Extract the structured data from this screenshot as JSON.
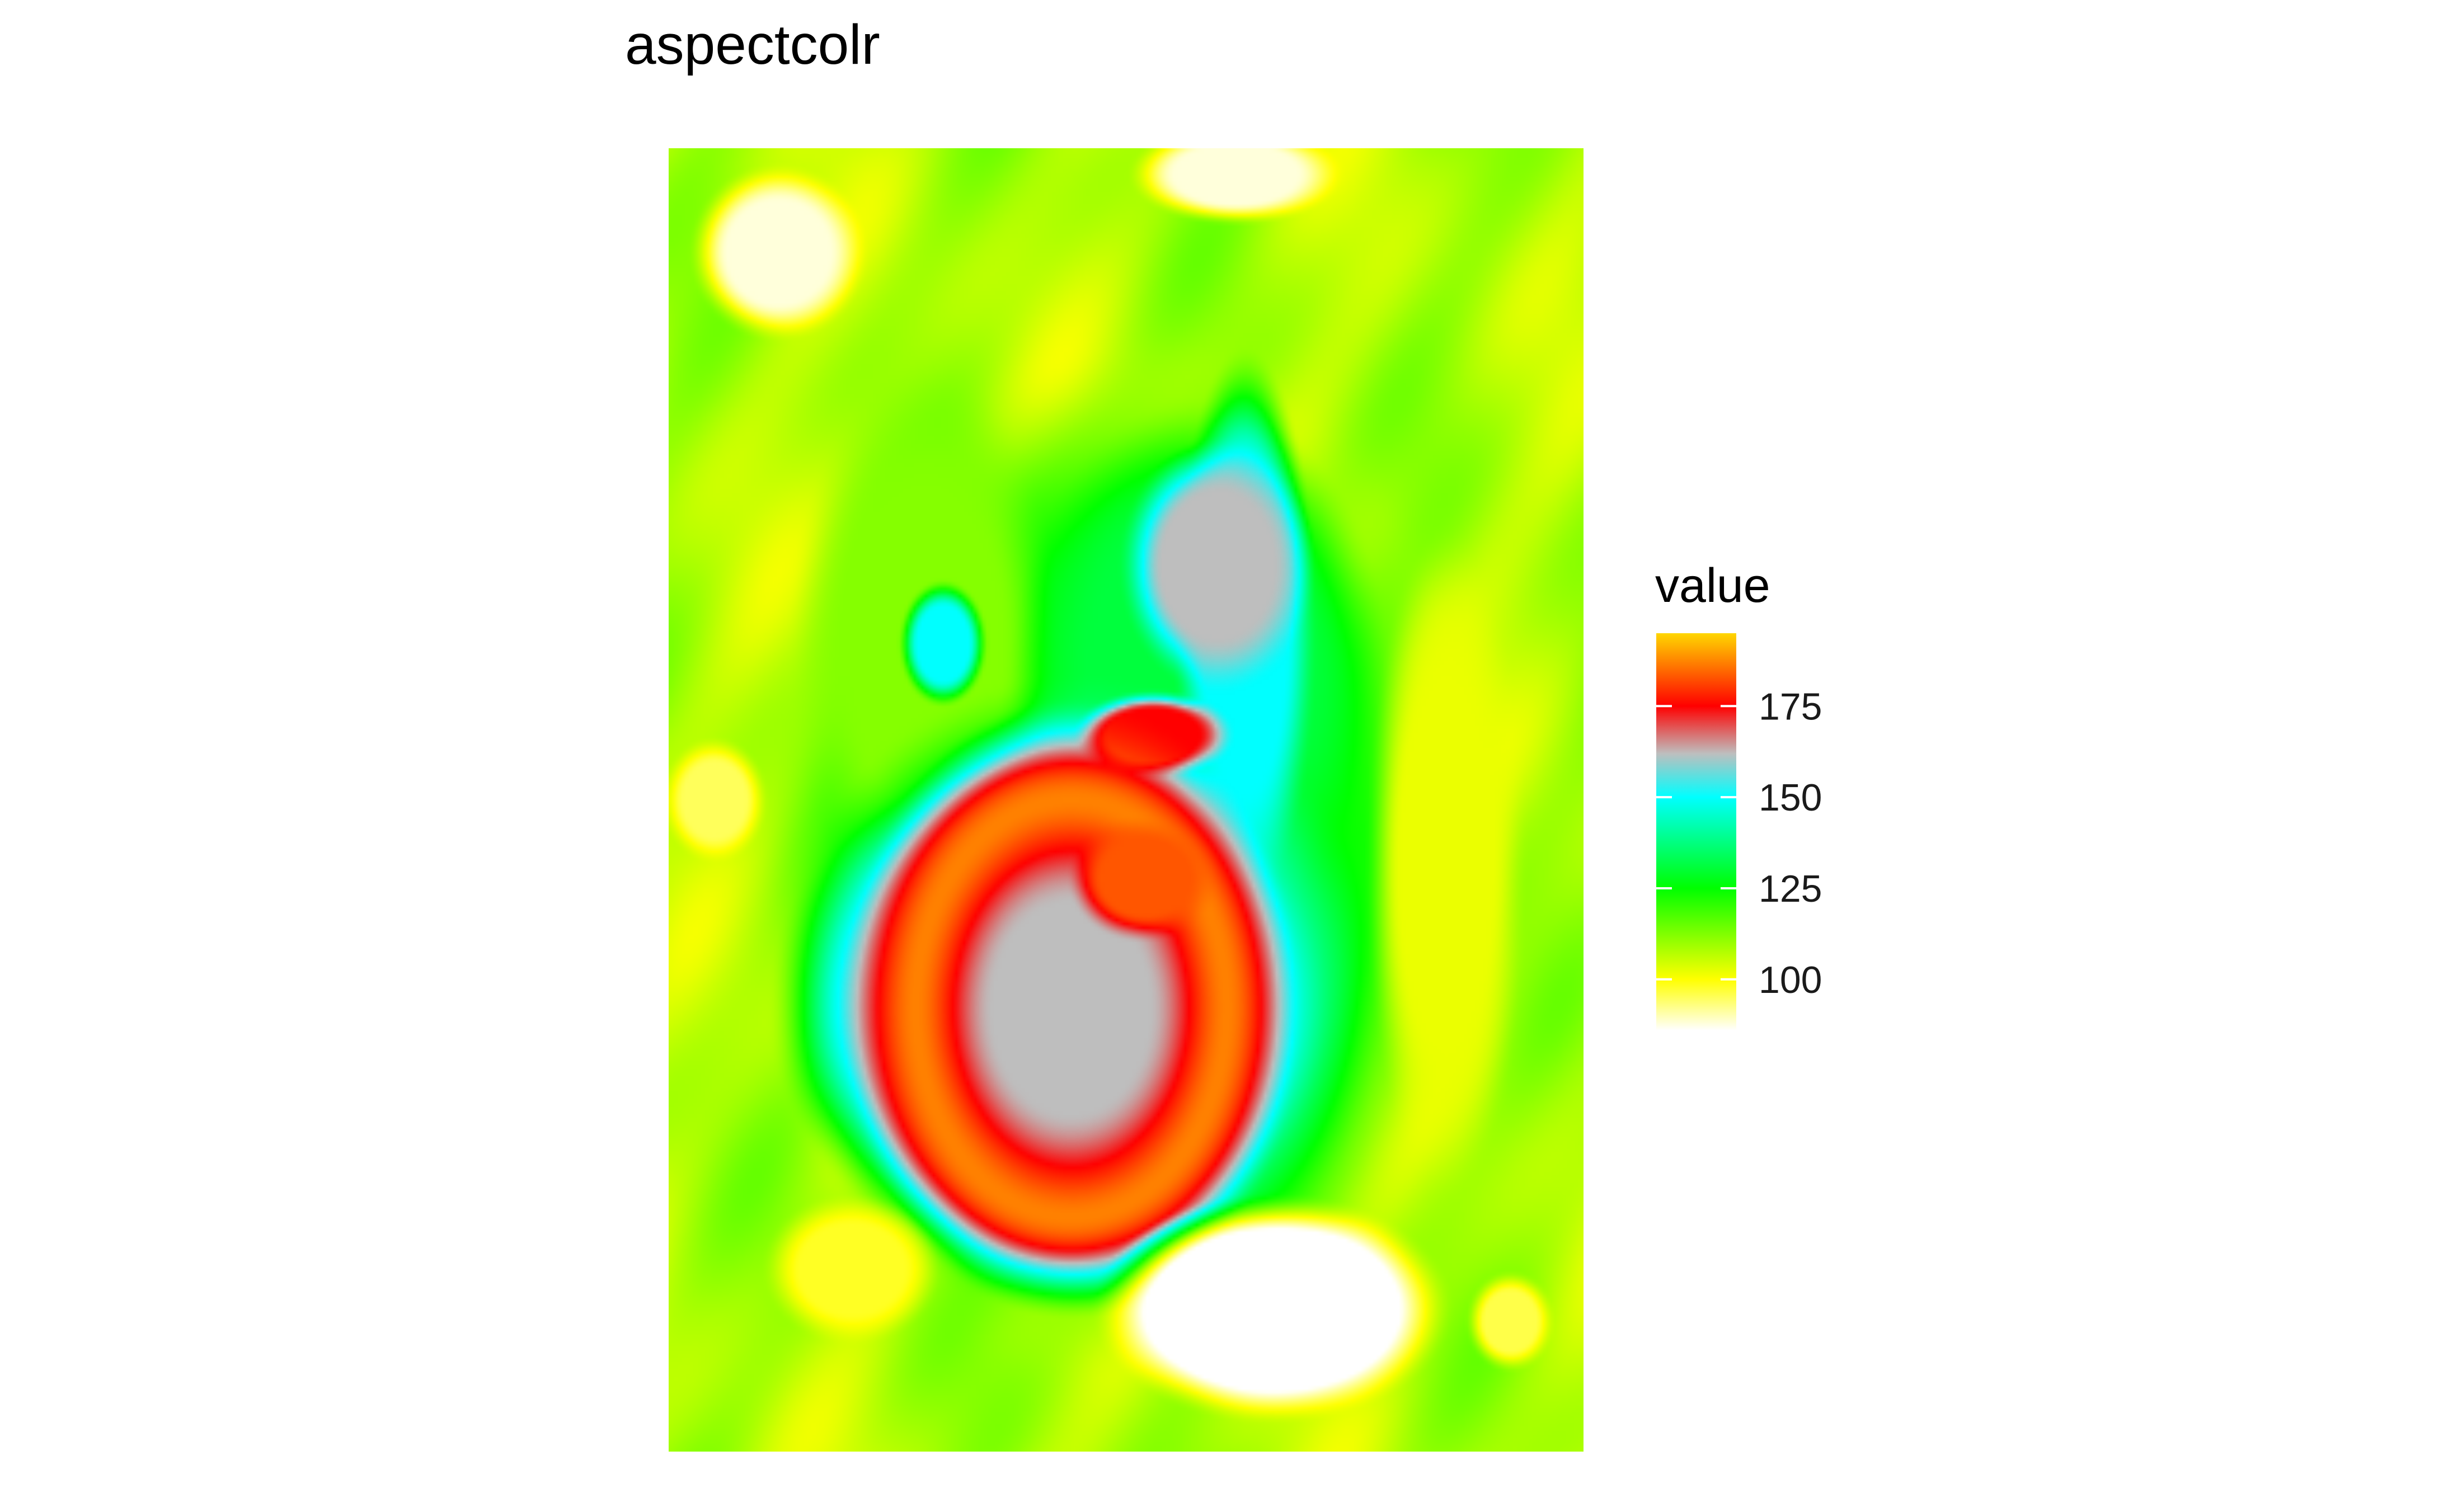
{
  "chart_data": {
    "type": "heatmap",
    "title": "aspectcolr",
    "xlabel": "",
    "ylabel": "",
    "colorbar": {
      "title": "value",
      "range": [
        86,
        195
      ],
      "ticks": [
        100,
        125,
        150,
        175
      ],
      "tick_labels": [
        "100",
        "125",
        "150",
        "175"
      ],
      "palette": [
        {
          "value": 86,
          "color": "#ffffff"
        },
        {
          "value": 100,
          "color": "#ffff00"
        },
        {
          "value": 125,
          "color": "#00ff00"
        },
        {
          "value": 150,
          "color": "#00ffff"
        },
        {
          "value": 162,
          "color": "#bebebe"
        },
        {
          "value": 175,
          "color": "#ff0000"
        },
        {
          "value": 195,
          "color": "#ffd700"
        }
      ]
    },
    "grid": false,
    "legend_position": "right",
    "field": {
      "background": 108,
      "features": [
        {
          "shape": "plateau",
          "cx": 0.5,
          "cy": 0.55,
          "rx": 0.4,
          "ry": 0.4,
          "value": 125,
          "rot": 0
        },
        {
          "shape": "plateau",
          "cx": 0.28,
          "cy": 0.38,
          "rx": 0.15,
          "ry": 0.22,
          "value": 112,
          "rot": 0
        },
        {
          "shape": "plateau",
          "cx": 0.58,
          "cy": 0.4,
          "rx": 0.21,
          "ry": 0.21,
          "value": 131,
          "rot": 0
        },
        {
          "shape": "plateau",
          "cx": 0.45,
          "cy": 0.65,
          "rx": 0.34,
          "ry": 0.25,
          "value": 150,
          "rot": 0
        },
        {
          "shape": "plateau",
          "cx": 0.63,
          "cy": 0.37,
          "rx": 0.08,
          "ry": 0.22,
          "value": 150,
          "rot": 0
        },
        {
          "shape": "plateau",
          "cx": 0.3,
          "cy": 0.38,
          "rx": 0.05,
          "ry": 0.05,
          "value": 150,
          "rot": 0
        },
        {
          "shape": "plateau",
          "cx": 0.6,
          "cy": 0.32,
          "rx": 0.11,
          "ry": 0.1,
          "value": 162,
          "rot": 0
        },
        {
          "shape": "plateau",
          "cx": 0.53,
          "cy": 0.45,
          "rx": 0.09,
          "ry": 0.035,
          "value": 175,
          "rot": 0
        },
        {
          "shape": "plateau",
          "cx": 0.415,
          "cy": 0.66,
          "rx": 0.31,
          "ry": 0.2,
          "value": 162,
          "rot": 0
        },
        {
          "shape": "ring",
          "cx": 0.44,
          "cy": 0.66,
          "rx": 0.17,
          "ry": 0.16,
          "width": 0.16,
          "value": 187,
          "rot": 0
        },
        {
          "shape": "plateau",
          "cx": 0.52,
          "cy": 0.56,
          "rx": 0.085,
          "ry": 0.05,
          "value": 183,
          "rot": 0
        },
        {
          "shape": "plateau",
          "cx": 0.66,
          "cy": 0.89,
          "rx": 0.2,
          "ry": 0.09,
          "value": 78,
          "rot": 0
        },
        {
          "shape": "plateau",
          "cx": 0.85,
          "cy": 0.55,
          "rx": 0.09,
          "ry": 0.26,
          "value": 102,
          "rot": 0
        },
        {
          "shape": "plateau",
          "cx": 0.05,
          "cy": 0.5,
          "rx": 0.06,
          "ry": 0.05,
          "value": 95,
          "rot": 0
        },
        {
          "shape": "plateau",
          "cx": 0.12,
          "cy": 0.08,
          "rx": 0.1,
          "ry": 0.07,
          "value": 88,
          "rot": 0
        },
        {
          "shape": "plateau",
          "cx": 0.62,
          "cy": 0.02,
          "rx": 0.12,
          "ry": 0.04,
          "value": 88,
          "rot": 0
        },
        {
          "shape": "plateau",
          "cx": 0.92,
          "cy": 0.9,
          "rx": 0.05,
          "ry": 0.04,
          "value": 96,
          "rot": 0
        },
        {
          "shape": "plateau",
          "cx": 0.2,
          "cy": 0.86,
          "rx": 0.1,
          "ry": 0.06,
          "value": 98,
          "rot": 0
        }
      ]
    }
  }
}
